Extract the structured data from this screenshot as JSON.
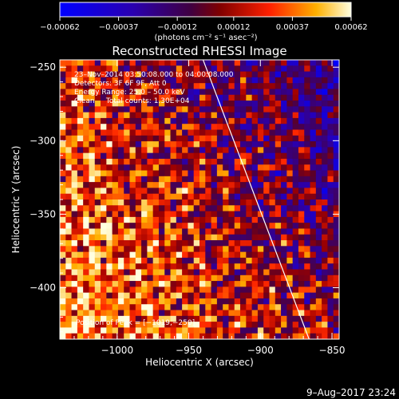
{
  "chart_data": {
    "type": "heatmap",
    "title": "Reconstructed RHESSI Image",
    "xlabel": "Heliocentric X (arcsec)",
    "ylabel": "Heliocentric Y (arcsec)",
    "xlim": [
      -1040,
      -845
    ],
    "ylim": [
      -435,
      -245
    ],
    "x_ticks": [
      -1000,
      -950,
      -900,
      -850
    ],
    "y_ticks": [
      -400,
      -350,
      -300,
      -250
    ],
    "x_tick_labels": [
      "−1000",
      "−950",
      "−900",
      "−850"
    ],
    "y_tick_labels": [
      "−400",
      "−350",
      "−300",
      "−250"
    ],
    "colorbar": {
      "min": -0.00062,
      "max": 0.00062,
      "ticks": [
        -0.00062,
        -0.00037,
        -0.00012,
        0.00012,
        0.00037,
        0.00062
      ],
      "tick_labels": [
        "−0.00062",
        "−0.00037",
        "−0.00012",
        "0.00012",
        "0.00037",
        "0.00062"
      ],
      "unit_label": "(photons cm⁻² s⁻¹ asec⁻²)"
    },
    "annotations": [
      "23–Nov–2014 03:50:08.000 to 04:00:08.000",
      "Detectors: 3F 6F 9F, Att 0",
      "Energy Range: 25.0 – 50.0 keV",
      "Clean     Total counts: 1.30E+04"
    ],
    "peak_label": "Position of Peak = [−1019,−250]",
    "limb": {
      "x": [
        -940,
        -866
      ],
      "y": [
        -245,
        -435
      ]
    },
    "footer": "9–Aug–2017 23:24"
  }
}
